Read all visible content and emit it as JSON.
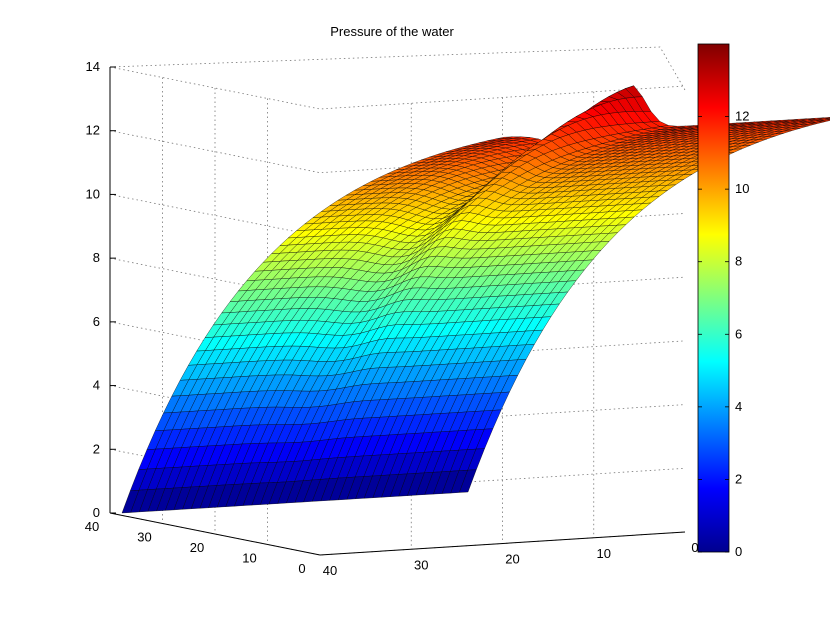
{
  "chart_data": {
    "type": "surface3d",
    "title": "Pressure of the water",
    "xlabel": "",
    "ylabel": "",
    "zlabel": "",
    "grid": true,
    "colormap": "jet",
    "x_axis": {
      "range": [
        0,
        40
      ],
      "ticks": [
        0,
        10,
        20,
        30,
        40
      ]
    },
    "y_axis": {
      "range": [
        0,
        40
      ],
      "ticks": [
        0,
        10,
        20,
        30,
        40
      ]
    },
    "z_axis": {
      "range": [
        0,
        14
      ],
      "ticks": [
        0,
        2,
        4,
        6,
        8,
        10,
        12,
        14
      ]
    },
    "colorbar": {
      "range": [
        0,
        14
      ],
      "ticks": [
        0,
        2,
        4,
        6,
        8,
        10,
        12
      ]
    },
    "surface_profile": {
      "base": 0,
      "edge_peak": 11.8,
      "ridge_peak": 12.9,
      "far_edge_end": 11.5
    }
  }
}
